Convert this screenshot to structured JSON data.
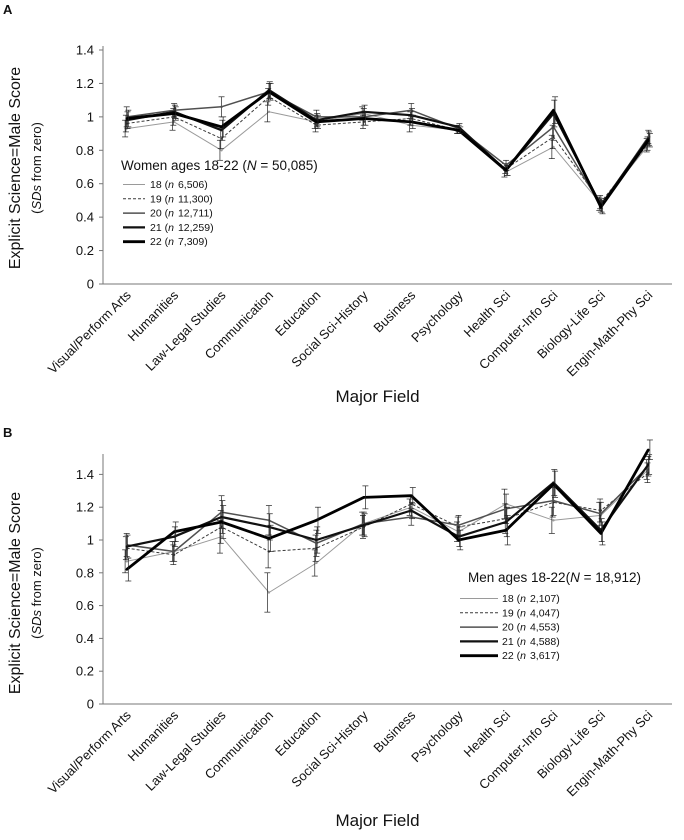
{
  "chart_data": [
    {
      "type": "line",
      "panel": "A",
      "title": "Women ages 18-22 (N = 50,085)",
      "caption_parts": [
        "Women ages 18-22 (",
        "N",
        " = 50,085)"
      ],
      "xlabel": "Major Field",
      "ylabel": "Explicit Science=Male Score",
      "ylabel_sub_parts": [
        "(",
        "SDs",
        " from zero)"
      ],
      "ylim": [
        0,
        1.4
      ],
      "yticks": [
        "0",
        "0.2",
        "0.4",
        "0.6",
        "0.8",
        "1",
        "1.2",
        "1.4"
      ],
      "ytick_values": [
        0,
        0.2,
        0.4,
        0.6,
        0.8,
        1,
        1.2,
        1.4
      ],
      "categories": [
        "Visual/Perform Arts",
        "Humanities",
        "Law-Legal Studies",
        "Communication",
        "Education",
        "Social Sci-History",
        "Business",
        "Psychology",
        "Health Sci",
        "Computer-Info Sci",
        "Biology-Life Sci",
        "Engin-Math-Phy Sci"
      ],
      "series": [
        {
          "name": "18",
          "n_label": "6,506",
          "style": "thin-gray",
          "values": [
            0.93,
            0.97,
            0.8,
            1.03,
            0.97,
            1.02,
            0.95,
            0.92,
            0.67,
            0.82,
            0.48,
            0.83
          ],
          "errors": [
            0.05,
            0.05,
            0.06,
            0.06,
            0.04,
            0.04,
            0.04,
            0.02,
            0.03,
            0.07,
            0.04,
            0.04
          ]
        },
        {
          "name": "19",
          "n_label": "11,300",
          "style": "dashed",
          "values": [
            0.96,
            1.0,
            0.87,
            1.12,
            0.95,
            0.97,
            0.99,
            0.92,
            0.69,
            0.88,
            0.49,
            0.84
          ],
          "errors": [
            0.05,
            0.05,
            0.06,
            0.05,
            0.04,
            0.04,
            0.04,
            0.02,
            0.03,
            0.07,
            0.04,
            0.04
          ]
        },
        {
          "name": "20",
          "n_label": "12,711",
          "style": "medium",
          "values": [
            1.0,
            1.04,
            1.06,
            1.15,
            1.0,
            1.0,
            1.04,
            0.93,
            0.71,
            0.94,
            0.47,
            0.88
          ],
          "errors": [
            0.06,
            0.04,
            0.06,
            0.05,
            0.04,
            0.05,
            0.04,
            0.02,
            0.03,
            0.08,
            0.04,
            0.04
          ]
        },
        {
          "name": "21",
          "n_label": "12,259",
          "style": "thick",
          "values": [
            0.98,
            1.03,
            0.92,
            1.16,
            0.98,
            1.03,
            1.01,
            0.94,
            0.68,
            1.02,
            0.47,
            0.87
          ],
          "errors": [
            0.05,
            0.04,
            0.06,
            0.05,
            0.04,
            0.04,
            0.04,
            0.02,
            0.03,
            0.08,
            0.04,
            0.04
          ]
        },
        {
          "name": "22",
          "n_label": "7,309",
          "style": "thickest",
          "values": [
            0.99,
            1.02,
            0.94,
            1.15,
            0.97,
            0.99,
            0.97,
            0.92,
            0.68,
            1.04,
            0.46,
            0.86
          ],
          "errors": [
            0.05,
            0.04,
            0.06,
            0.05,
            0.04,
            0.04,
            0.04,
            0.02,
            0.03,
            0.08,
            0.04,
            0.04
          ]
        }
      ]
    },
    {
      "type": "line",
      "panel": "B",
      "title": "Men ages 18-22 (N = 18,912)",
      "caption_parts": [
        "Men ages 18-22(",
        "N",
        " = 18,912)"
      ],
      "xlabel": "Major Field",
      "ylabel": "Explicit Science=Male Score",
      "ylabel_sub_parts": [
        "(",
        "SDs",
        " from zero)"
      ],
      "ylim": [
        0,
        1.5
      ],
      "yticks": [
        "0",
        "0.2",
        "0.4",
        "0.6",
        "0.8",
        "1",
        "1.2",
        "1.4"
      ],
      "ytick_values": [
        0,
        0.2,
        0.4,
        0.6,
        0.8,
        1,
        1.2,
        1.4
      ],
      "categories": [
        "Visual/Perform Arts",
        "Humanities",
        "Law-Legal Studies",
        "Communication",
        "Education",
        "Social Sci-History",
        "Business",
        "Psychology",
        "Health Sci",
        "Computer-Info Sci",
        "Biology-Life Sci",
        "Engin-Math-Phy Sci"
      ],
      "series": [
        {
          "name": "18",
          "n_label": "2,107",
          "style": "thin-gray",
          "values": [
            0.87,
            0.93,
            1.02,
            0.68,
            0.86,
            1.1,
            1.2,
            1.05,
            1.22,
            1.12,
            1.15,
            1.43
          ],
          "errors": [
            0.07,
            0.06,
            0.1,
            0.12,
            0.08,
            0.07,
            0.05,
            0.06,
            0.09,
            0.08,
            0.08,
            0.06
          ]
        },
        {
          "name": "19",
          "n_label": "4,047",
          "style": "dashed",
          "values": [
            0.95,
            0.91,
            1.08,
            0.93,
            0.95,
            1.08,
            1.22,
            1.08,
            1.13,
            1.23,
            1.18,
            1.41
          ],
          "errors": [
            0.07,
            0.06,
            0.1,
            0.1,
            0.08,
            0.07,
            0.05,
            0.06,
            0.09,
            0.09,
            0.07,
            0.06
          ]
        },
        {
          "name": "20",
          "n_label": "4,553",
          "style": "medium",
          "values": [
            0.97,
            0.93,
            1.17,
            1.12,
            0.98,
            1.1,
            1.14,
            1.09,
            1.19,
            1.24,
            1.16,
            1.45
          ],
          "errors": [
            0.07,
            0.06,
            0.1,
            0.09,
            0.08,
            0.07,
            0.05,
            0.06,
            0.09,
            0.09,
            0.07,
            0.06
          ]
        },
        {
          "name": "21",
          "n_label": "4,588",
          "style": "thick",
          "values": [
            0.96,
            1.02,
            1.14,
            1.08,
            1.0,
            1.09,
            1.18,
            1.02,
            1.11,
            1.35,
            1.06,
            1.46
          ],
          "errors": [
            0.07,
            0.06,
            0.1,
            0.08,
            0.08,
            0.07,
            0.05,
            0.06,
            0.09,
            0.08,
            0.07,
            0.06
          ]
        },
        {
          "name": "22",
          "n_label": "3,617",
          "style": "thickest",
          "values": [
            0.82,
            1.05,
            1.11,
            1.01,
            1.12,
            1.26,
            1.27,
            1.0,
            1.06,
            1.34,
            1.04,
            1.55
          ],
          "errors": [
            0.07,
            0.06,
            0.1,
            0.08,
            0.08,
            0.07,
            0.05,
            0.06,
            0.09,
            0.08,
            0.07,
            0.06
          ]
        }
      ]
    }
  ],
  "legend_n_prefix": "n"
}
